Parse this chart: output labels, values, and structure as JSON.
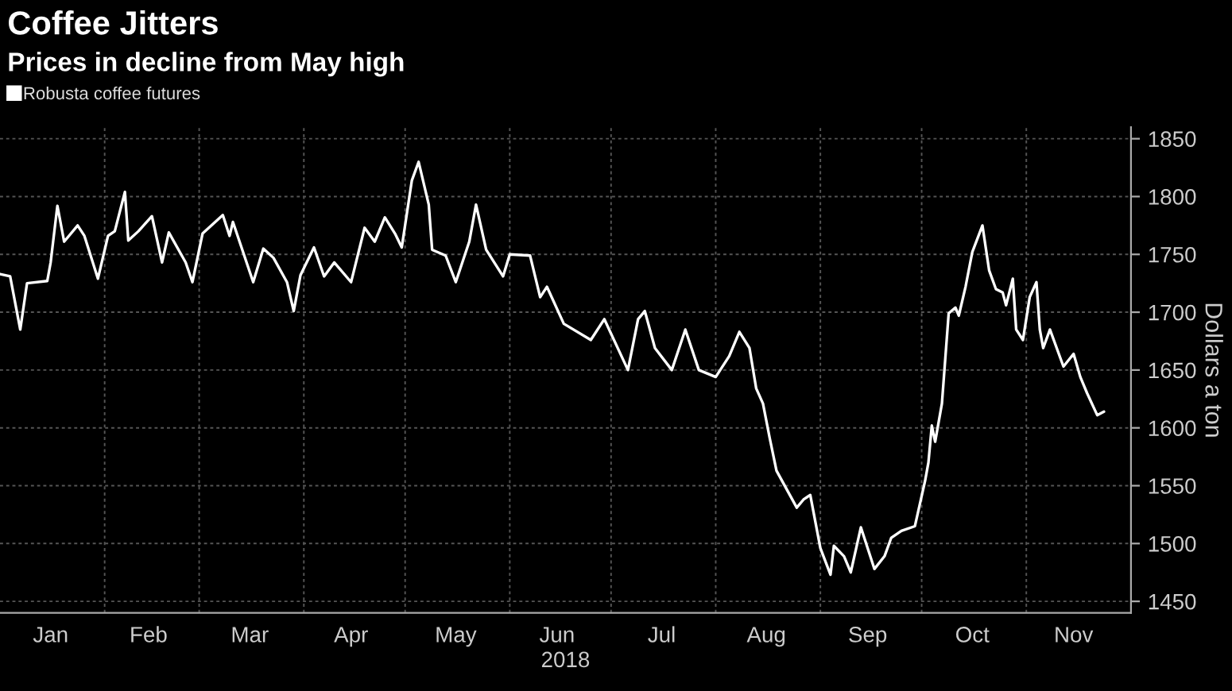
{
  "chart_data": {
    "type": "line",
    "title": "Coffee Jitters",
    "subtitle": "Prices in decline from May high",
    "xlabel": "2018",
    "ylabel": "Dollars a ton",
    "x": [
      "2018-01-01",
      "2018-01-04",
      "2018-01-07",
      "2018-01-09",
      "2018-01-15",
      "2018-01-16",
      "2018-01-18",
      "2018-01-20",
      "2018-01-24",
      "2018-01-26",
      "2018-01-30",
      "2018-02-02",
      "2018-02-04",
      "2018-02-07",
      "2018-02-08",
      "2018-02-11",
      "2018-02-15",
      "2018-02-18",
      "2018-02-20",
      "2018-02-25",
      "2018-02-27",
      "2018-03-02",
      "2018-03-08",
      "2018-03-10",
      "2018-03-11",
      "2018-03-17",
      "2018-03-20",
      "2018-03-23",
      "2018-03-27",
      "2018-03-29",
      "2018-03-31",
      "2018-04-04",
      "2018-04-07",
      "2018-04-10",
      "2018-04-15",
      "2018-04-19",
      "2018-04-22",
      "2018-04-25",
      "2018-04-28",
      "2018-04-30",
      "2018-05-03",
      "2018-05-05",
      "2018-05-08",
      "2018-05-09",
      "2018-05-13",
      "2018-05-16",
      "2018-05-20",
      "2018-05-22",
      "2018-05-25",
      "2018-05-30",
      "2018-06-01",
      "2018-06-07",
      "2018-06-10",
      "2018-06-12",
      "2018-06-17",
      "2018-06-25",
      "2018-06-29",
      "2018-07-06",
      "2018-07-09",
      "2018-07-11",
      "2018-07-14",
      "2018-07-19",
      "2018-07-23",
      "2018-07-27",
      "2018-08-01",
      "2018-08-05",
      "2018-08-08",
      "2018-08-11",
      "2018-08-13",
      "2018-08-15",
      "2018-08-17",
      "2018-08-19",
      "2018-08-25",
      "2018-08-27",
      "2018-08-29",
      "2018-09-01",
      "2018-09-04",
      "2018-09-05",
      "2018-09-08",
      "2018-09-10",
      "2018-09-13",
      "2018-09-17",
      "2018-09-20",
      "2018-09-22",
      "2018-09-25",
      "2018-09-29",
      "2018-10-02",
      "2018-10-03",
      "2018-10-04",
      "2018-10-05",
      "2018-10-07",
      "2018-10-09",
      "2018-10-11",
      "2018-10-12",
      "2018-10-14",
      "2018-10-16",
      "2018-10-19",
      "2018-10-21",
      "2018-10-23",
      "2018-10-25",
      "2018-10-26",
      "2018-10-28",
      "2018-10-29",
      "2018-10-31",
      "2018-11-02",
      "2018-11-04",
      "2018-11-05",
      "2018-11-06",
      "2018-11-08",
      "2018-11-12",
      "2018-11-15",
      "2018-11-17",
      "2018-11-19",
      "2018-11-22",
      "2018-11-24"
    ],
    "series": [
      {
        "name": "Robusta coffee futures",
        "color": "#ffffff",
        "values": [
          1733,
          1731,
          1685,
          1725,
          1727,
          1743,
          1792,
          1761,
          1775,
          1766,
          1729,
          1766,
          1770,
          1804,
          1762,
          1770,
          1783,
          1743,
          1769,
          1743,
          1726,
          1768,
          1784,
          1766,
          1778,
          1726,
          1755,
          1747,
          1726,
          1701,
          1732,
          1756,
          1731,
          1743,
          1726,
          1773,
          1761,
          1782,
          1768,
          1756,
          1814,
          1830,
          1793,
          1754,
          1749,
          1726,
          1761,
          1793,
          1754,
          1731,
          1750,
          1749,
          1713,
          1722,
          1690,
          1676,
          1694,
          1650,
          1694,
          1701,
          1669,
          1650,
          1685,
          1650,
          1644,
          1662,
          1683,
          1669,
          1634,
          1621,
          1591,
          1563,
          1531,
          1538,
          1542,
          1496,
          1473,
          1498,
          1489,
          1475,
          1514,
          1478,
          1489,
          1505,
          1511,
          1515,
          1554,
          1570,
          1602,
          1588,
          1621,
          1699,
          1704,
          1697,
          1722,
          1752,
          1775,
          1736,
          1720,
          1717,
          1706,
          1729,
          1685,
          1676,
          1713,
          1726,
          1685,
          1669,
          1685,
          1653,
          1664,
          1644,
          1630,
          1611,
          1614
        ]
      }
    ],
    "xlim": [
      "2018-01-01",
      "2018-12-02"
    ],
    "xticks": [
      {
        "value": "2018-02-01",
        "label": null
      },
      {
        "value": "2018-03-01",
        "label": null
      },
      {
        "value": "2018-04-01",
        "label": null
      },
      {
        "value": "2018-05-01",
        "label": null
      },
      {
        "value": "2018-06-01",
        "label": null
      },
      {
        "value": "2018-07-01",
        "label": null
      },
      {
        "value": "2018-08-01",
        "label": null
      },
      {
        "value": "2018-09-01",
        "label": null
      },
      {
        "value": "2018-10-01",
        "label": null
      },
      {
        "value": "2018-11-01",
        "label": null
      },
      {
        "value": "2018-01-16",
        "label": "Jan"
      },
      {
        "value": "2018-02-14",
        "label": "Feb"
      },
      {
        "value": "2018-03-16",
        "label": "Mar"
      },
      {
        "value": "2018-04-15",
        "label": "Apr"
      },
      {
        "value": "2018-05-16",
        "label": "May"
      },
      {
        "value": "2018-06-15",
        "label": "Jun"
      },
      {
        "value": "2018-07-16",
        "label": "Jul"
      },
      {
        "value": "2018-08-16",
        "label": "Aug"
      },
      {
        "value": "2018-09-15",
        "label": "Sep"
      },
      {
        "value": "2018-10-16",
        "label": "Oct"
      },
      {
        "value": "2018-11-15",
        "label": "Nov"
      }
    ],
    "ylim": [
      1440,
      1860
    ],
    "yticks": [
      1450,
      1500,
      1550,
      1600,
      1650,
      1700,
      1750,
      1800,
      1850
    ],
    "grid": true,
    "legend": "top left",
    "marker": "none",
    "line_style": "solid"
  }
}
